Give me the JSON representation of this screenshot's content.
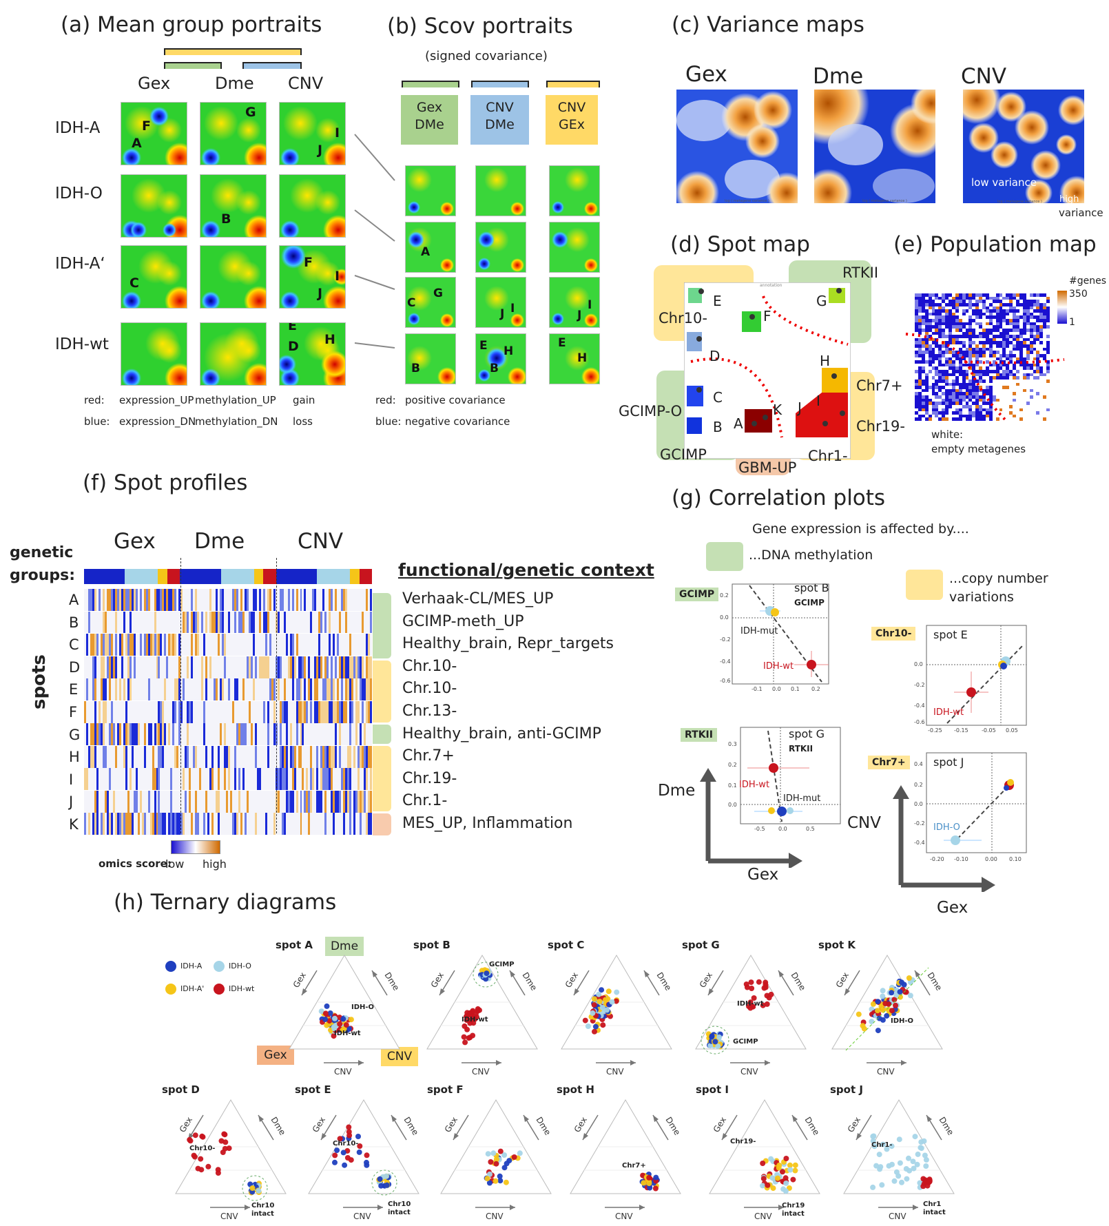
{
  "panel_a": {
    "title": "(a) Mean group portraits",
    "columns": [
      "Gex",
      "Dme",
      "CNV"
    ],
    "rows": [
      "IDH-A",
      "IDH-O",
      "IDH-A‘",
      "IDH-wt"
    ],
    "legend": {
      "red_label": "red:",
      "red_values": [
        "expression_UP",
        "methylation_UP",
        "gain"
      ],
      "blue_label": "blue:",
      "blue_values": [
        "expression_DN",
        "methylation_DN",
        "loss"
      ]
    }
  },
  "panel_b": {
    "title": "(b) Scov portraits",
    "subtitle": "(signed covariance)",
    "boxes": [
      {
        "line1": "Gex",
        "line2": "DMe",
        "color": "#a9d18e"
      },
      {
        "line1": "CNV",
        "line2": "DMe",
        "color": "#9dc3e6"
      },
      {
        "line1": "CNV",
        "line2": "GEx",
        "color": "#ffd966"
      }
    ],
    "legend": {
      "red_label": "red:",
      "red_value": "positive covariance",
      "blue_label": "blue:",
      "blue_value": "negative covariance"
    }
  },
  "panel_c": {
    "title": "(c) Variance maps",
    "maps": [
      "Gex",
      "Dme",
      "CNV"
    ],
    "low_label": "low variance",
    "high_label": "high",
    "variance_label": "variance",
    "axis_caption": "log ( metagene variance )"
  },
  "panel_d": {
    "title": "(d) Spot map",
    "plot_caption": "annotation",
    "groups": [
      "RTKII",
      "Chr10-",
      "Chr7+",
      "Chr19-",
      "GCIMP-O",
      "GCIMP",
      "GBM-UP",
      "Chr1-"
    ],
    "spots": [
      "E",
      "F",
      "G",
      "D",
      "H",
      "C",
      "K",
      "J",
      "I",
      "A",
      "B"
    ]
  },
  "panel_e": {
    "title": "(e) Population map",
    "legend_title": "#genes",
    "legend_max": "350",
    "legend_min": "1",
    "white_note_1": "white:",
    "white_note_2": "empty metagenes"
  },
  "panel_f": {
    "title": "(f) Spot profiles",
    "columns": [
      "Gex",
      "Dme",
      "CNV"
    ],
    "genetic_groups_1": "genetic",
    "genetic_groups_2": "groups:",
    "axis_label": "spots",
    "context_header": "functional/genetic context",
    "rows": [
      "A",
      "B",
      "C",
      "D",
      "E",
      "F",
      "G",
      "H",
      "I",
      "J",
      "K"
    ],
    "contexts": [
      "Verhaak-CL/MES_UP",
      "GCIMP-meth_UP",
      "Healthy_brain, Repr_targets",
      "Chr.10-",
      "Chr.10-",
      "Chr.13-",
      "Healthy_brain, anti-GCIMP",
      "Chr.7+",
      "Chr.19-",
      "Chr.1-",
      "MES_UP, Inflammation"
    ],
    "score_label": "omics score:",
    "low": "low",
    "high": "high"
  },
  "panel_g": {
    "title": "(g) Correlation plots",
    "subtitle": "Gene expression is affected by....",
    "dna_meth": "...DNA methylation",
    "cnv_1": "...copy number",
    "cnv_2": "variations",
    "axis_dme": "Dme",
    "axis_gex": "Gex",
    "axis_cnv": "CNV",
    "plots": [
      {
        "tag": "GCIMP",
        "spot": "spot B",
        "sub": "GCIMP",
        "l1": "IDH-mut",
        "l2": "IDH-wt"
      },
      {
        "tag": "Chr10-",
        "spot": "spot E",
        "sub": "",
        "l1": "",
        "l2": "IDH-wt"
      },
      {
        "tag": "RTKII",
        "spot": "spot G",
        "sub": "RTKII",
        "l1": "IDH-wt",
        "l2": "IDH-mut"
      },
      {
        "tag": "Chr7+",
        "spot": "spot J",
        "sub": "",
        "l1": "IDH-O",
        "l2": ""
      }
    ],
    "ticks_b_x": [
      "-0.1",
      "0.0",
      "0.1",
      "0.2"
    ],
    "ticks_b_y": [
      "0.2",
      "0.0",
      "-0.2",
      "-0.4",
      "-0.6"
    ],
    "ticks_e_x": [
      "-0.25",
      "-0.15",
      "-0.05",
      "0.05"
    ],
    "ticks_e_y": [
      "0.0",
      "-0.2",
      "-0.4",
      "-0.6"
    ],
    "ticks_g_x": [
      "-0.5",
      "0.0",
      "0.5"
    ],
    "ticks_g_y": [
      "0.3",
      "0.2",
      "0.1",
      "0.0"
    ],
    "ticks_j_x": [
      "-0.20",
      "-0.10",
      "0.00",
      "0.10"
    ],
    "ticks_j_y": [
      "0.4",
      "0.2",
      "0.0",
      "-0.2",
      "-0.4"
    ]
  },
  "panel_h": {
    "title": "(h) Ternary diagrams",
    "legend": [
      "IDH-A",
      "IDH-O",
      "IDH-A'",
      "IDH-wt"
    ],
    "legend_colors": [
      "#1f3fbf",
      "#a6d5e8",
      "#f5c518",
      "#c8141e"
    ],
    "tag_dme": "Dme",
    "tag_gex": "Gex",
    "tag_cnv": "CNV",
    "axis_gex": "Gex",
    "axis_dme": "Dme",
    "axis_cnv": "CNV",
    "row1": [
      {
        "spot": "spot A",
        "annot": [
          "IDH-O",
          "IDH-wt"
        ]
      },
      {
        "spot": "spot B",
        "annot": [
          "GCIMP",
          "IDH-wt"
        ]
      },
      {
        "spot": "spot C",
        "annot": []
      },
      {
        "spot": "spot G",
        "annot": [
          "IDH-wt",
          "GCIMP"
        ]
      },
      {
        "spot": "spot K",
        "annot": [
          "IDH-O"
        ]
      }
    ],
    "row2": [
      {
        "spot": "spot D",
        "annot": [
          "Chr10-",
          "Chr10",
          "intact"
        ]
      },
      {
        "spot": "spot E",
        "annot": [
          "Chr10-",
          "Chr10",
          "intact"
        ]
      },
      {
        "spot": "spot F",
        "annot": []
      },
      {
        "spot": "spot H",
        "annot": [
          "Chr7+"
        ]
      },
      {
        "spot": "spot I",
        "annot": [
          "Chr19-",
          "Chr19",
          "intact"
        ]
      },
      {
        "spot": "spot J",
        "annot": [
          "Chr1-",
          "Chr1",
          "intact"
        ]
      }
    ]
  }
}
